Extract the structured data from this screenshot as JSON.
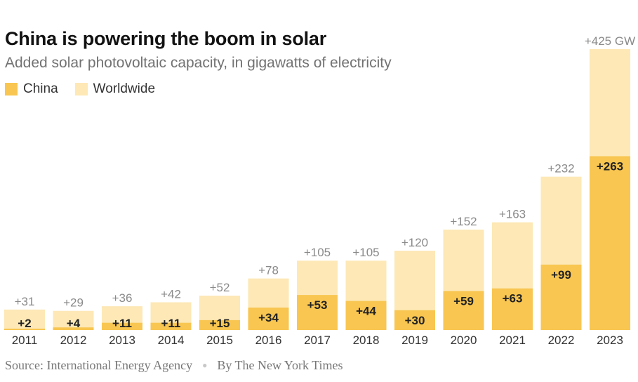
{
  "title": "China is powering the boom in solar",
  "subtitle": "Added solar photovoltaic capacity, in gigawatts of electricity",
  "legend": [
    {
      "label": "China",
      "color": "#f8c651"
    },
    {
      "label": "Worldwide",
      "color": "#fde8b6"
    }
  ],
  "source": "Source: International Energy Agency",
  "credit": "By The New York Times",
  "chart_data": {
    "type": "bar",
    "layout": "overlapping",
    "categories": [
      "2011",
      "2012",
      "2013",
      "2014",
      "2015",
      "2016",
      "2017",
      "2018",
      "2019",
      "2020",
      "2021",
      "2022",
      "2023"
    ],
    "series": [
      {
        "name": "Worldwide",
        "color": "#fde8b6",
        "values": [
          31,
          29,
          36,
          42,
          52,
          78,
          105,
          105,
          120,
          152,
          163,
          232,
          425
        ],
        "labels": [
          "+31",
          "+29",
          "+36",
          "+42",
          "+52",
          "+78",
          "+105",
          "+105",
          "+120",
          "+152",
          "+163",
          "+232",
          "+425 GW"
        ]
      },
      {
        "name": "China",
        "color": "#f8c651",
        "values": [
          2,
          4,
          11,
          11,
          15,
          34,
          53,
          44,
          30,
          59,
          63,
          99,
          263
        ],
        "labels": [
          "+2",
          "+4",
          "+11",
          "+11",
          "+15",
          "+34",
          "+53",
          "+44",
          "+30",
          "+59",
          "+63",
          "+99",
          "+263"
        ]
      }
    ],
    "ylim": [
      0,
      425
    ],
    "grid": false,
    "legend_position": "top-left"
  }
}
